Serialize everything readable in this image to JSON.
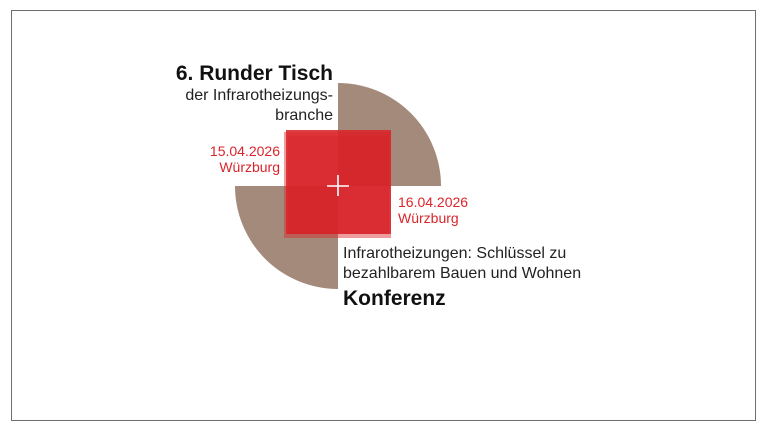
{
  "event": {
    "title": "6. Runder Tisch",
    "subtitle_line1": "der Infrarotheizungs-",
    "subtitle_line2": "branche",
    "day1_date": "15.04.2026",
    "day1_city": "Würzburg",
    "day2_date": "16.04.2026",
    "day2_city": "Würzburg",
    "conference_line1": "Infrarotheizungen: Schlüssel zu",
    "conference_line2": "bezahlbarem Bauen und Wohnen",
    "conference_label": "Konferenz"
  },
  "colors": {
    "accent_red": "#d9252b",
    "quarter_brown": "#a48a7b",
    "frame_border": "#6e6e6e"
  },
  "icons": {
    "center_mark": "plus-icon"
  }
}
